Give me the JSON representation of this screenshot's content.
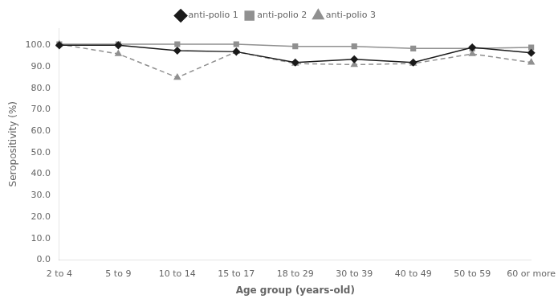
{
  "chart_data": {
    "type": "line",
    "categories": [
      "2 to 4",
      "5 to 9",
      "10 to 14",
      "15 to 17",
      "18 to 29",
      "30 to 39",
      "40 to 49",
      "50 to 59",
      "60 or more"
    ],
    "series": [
      {
        "name": "anti-polio 1",
        "color": "#1a1a1a",
        "marker": "diamond",
        "line_style": "solid",
        "values": [
          100.0,
          100.0,
          97.5,
          97.0,
          92.0,
          93.5,
          92.0,
          99.0,
          96.5
        ]
      },
      {
        "name": "anti-polio 2",
        "color": "#909090",
        "marker": "square",
        "line_style": "solid",
        "values": [
          100.5,
          100.5,
          100.5,
          100.5,
          99.5,
          99.5,
          98.5,
          98.5,
          99.0
        ]
      },
      {
        "name": "anti-polio 3",
        "color": "#909090",
        "marker": "triangle",
        "line_style": "dashed",
        "values": [
          100.5,
          96.0,
          85.0,
          97.0,
          91.5,
          91.0,
          91.5,
          96.0,
          92.0
        ]
      }
    ],
    "x_label": "Age group (years-old)",
    "y_label": "Seropositivity (%)",
    "ylim": [
      0.0,
      108.0
    ],
    "yticks": [
      {
        "value": 0,
        "label": "0.0"
      },
      {
        "value": 10,
        "label": "10.0"
      },
      {
        "value": 20,
        "label": "20.0"
      },
      {
        "value": 30,
        "label": "30.0"
      },
      {
        "value": 40,
        "label": "40.0"
      },
      {
        "value": 50,
        "label": "50.0"
      },
      {
        "value": 60,
        "label": "60.0"
      },
      {
        "value": 70,
        "label": "70.0"
      },
      {
        "value": 80,
        "label": "80.0"
      },
      {
        "value": 90,
        "label": "90.0"
      },
      {
        "value": 100,
        "label": "100.0"
      }
    ],
    "grid": false,
    "legend": "top"
  }
}
